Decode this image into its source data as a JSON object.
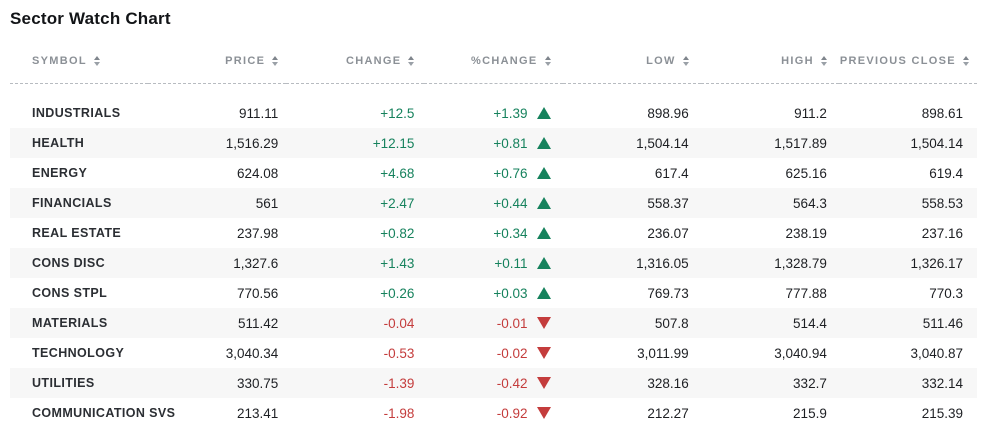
{
  "title": "Sector Watch Chart",
  "colors": {
    "positive": "#16825d",
    "negative": "#c43c3c",
    "stripe": "#f7f7f7",
    "header_text": "#8b9096"
  },
  "table": {
    "columns": [
      {
        "key": "symbol",
        "label": "SYMBOL"
      },
      {
        "key": "price",
        "label": "PRICE"
      },
      {
        "key": "change",
        "label": "CHANGE"
      },
      {
        "key": "pchange",
        "label": "%CHANGE"
      },
      {
        "key": "low",
        "label": "LOW"
      },
      {
        "key": "high",
        "label": "HIGH"
      },
      {
        "key": "prev",
        "label": "PREVIOUS CLOSE"
      }
    ],
    "rows": [
      {
        "symbol": "INDUSTRIALS",
        "price": "911.11",
        "change": "+12.5",
        "pchange": "+1.39",
        "direction": "up",
        "low": "898.96",
        "high": "911.2",
        "prev": "898.61"
      },
      {
        "symbol": "HEALTH",
        "price": "1,516.29",
        "change": "+12.15",
        "pchange": "+0.81",
        "direction": "up",
        "low": "1,504.14",
        "high": "1,517.89",
        "prev": "1,504.14"
      },
      {
        "symbol": "ENERGY",
        "price": "624.08",
        "change": "+4.68",
        "pchange": "+0.76",
        "direction": "up",
        "low": "617.4",
        "high": "625.16",
        "prev": "619.4"
      },
      {
        "symbol": "FINANCIALS",
        "price": "561",
        "change": "+2.47",
        "pchange": "+0.44",
        "direction": "up",
        "low": "558.37",
        "high": "564.3",
        "prev": "558.53"
      },
      {
        "symbol": "REAL ESTATE",
        "price": "237.98",
        "change": "+0.82",
        "pchange": "+0.34",
        "direction": "up",
        "low": "236.07",
        "high": "238.19",
        "prev": "237.16"
      },
      {
        "symbol": "CONS DISC",
        "price": "1,327.6",
        "change": "+1.43",
        "pchange": "+0.11",
        "direction": "up",
        "low": "1,316.05",
        "high": "1,328.79",
        "prev": "1,326.17"
      },
      {
        "symbol": "CONS STPL",
        "price": "770.56",
        "change": "+0.26",
        "pchange": "+0.03",
        "direction": "up",
        "low": "769.73",
        "high": "777.88",
        "prev": "770.3"
      },
      {
        "symbol": "MATERIALS",
        "price": "511.42",
        "change": "-0.04",
        "pchange": "-0.01",
        "direction": "down",
        "low": "507.8",
        "high": "514.4",
        "prev": "511.46"
      },
      {
        "symbol": "TECHNOLOGY",
        "price": "3,040.34",
        "change": "-0.53",
        "pchange": "-0.02",
        "direction": "down",
        "low": "3,011.99",
        "high": "3,040.94",
        "prev": "3,040.87"
      },
      {
        "symbol": "UTILITIES",
        "price": "330.75",
        "change": "-1.39",
        "pchange": "-0.42",
        "direction": "down",
        "low": "328.16",
        "high": "332.7",
        "prev": "332.14"
      },
      {
        "symbol": "COMMUNICATION SVS",
        "price": "213.41",
        "change": "-1.98",
        "pchange": "-0.92",
        "direction": "down",
        "low": "212.27",
        "high": "215.9",
        "prev": "215.39"
      }
    ]
  },
  "chart_data": {
    "type": "table",
    "title": "Sector Watch Chart",
    "columns": [
      "SYMBOL",
      "PRICE",
      "CHANGE",
      "%CHANGE",
      "LOW",
      "HIGH",
      "PREVIOUS CLOSE"
    ],
    "categories": [
      "INDUSTRIALS",
      "HEALTH",
      "ENERGY",
      "FINANCIALS",
      "REAL ESTATE",
      "CONS DISC",
      "CONS STPL",
      "MATERIALS",
      "TECHNOLOGY",
      "UTILITIES",
      "COMMUNICATION SVS"
    ],
    "series": [
      {
        "name": "PRICE",
        "values": [
          911.11,
          1516.29,
          624.08,
          561,
          237.98,
          1327.6,
          770.56,
          511.42,
          3040.34,
          330.75,
          213.41
        ]
      },
      {
        "name": "CHANGE",
        "values": [
          12.5,
          12.15,
          4.68,
          2.47,
          0.82,
          1.43,
          0.26,
          -0.04,
          -0.53,
          -1.39,
          -1.98
        ]
      },
      {
        "name": "%CHANGE",
        "values": [
          1.39,
          0.81,
          0.76,
          0.44,
          0.34,
          0.11,
          0.03,
          -0.01,
          -0.02,
          -0.42,
          -0.92
        ]
      },
      {
        "name": "LOW",
        "values": [
          898.96,
          1504.14,
          617.4,
          558.37,
          236.07,
          1316.05,
          769.73,
          507.8,
          3011.99,
          328.16,
          212.27
        ]
      },
      {
        "name": "HIGH",
        "values": [
          911.2,
          1517.89,
          625.16,
          564.3,
          238.19,
          1328.79,
          777.88,
          514.4,
          3040.94,
          332.7,
          215.9
        ]
      },
      {
        "name": "PREVIOUS CLOSE",
        "values": [
          898.61,
          1504.14,
          619.4,
          558.53,
          237.16,
          1326.17,
          770.3,
          511.46,
          3040.87,
          332.14,
          215.39
        ]
      }
    ]
  }
}
